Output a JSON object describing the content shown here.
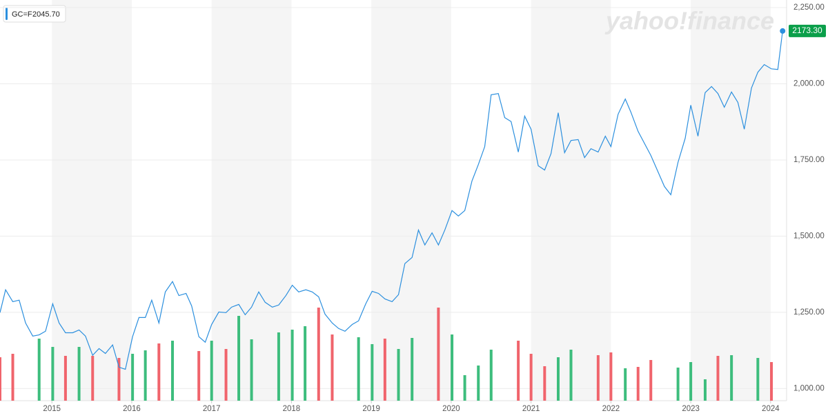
{
  "chart_data": {
    "type": "line",
    "symbol": "GC=F",
    "symbol_value": "2045.70",
    "watermark": "yahoo!finance",
    "last_label": "2173.30",
    "xlim": [
      2014.35,
      2024.2
    ],
    "xticks": [
      2015,
      2016,
      2017,
      2018,
      2019,
      2020,
      2021,
      2022,
      2023,
      2024
    ],
    "ylim": [
      960,
      2275
    ],
    "yticks": [
      {
        "value": 1000,
        "label": "1,000.00"
      },
      {
        "value": 1250,
        "label": "1,250.00"
      },
      {
        "value": 1500,
        "label": "1,500.00"
      },
      {
        "value": 1750,
        "label": "1,750.00"
      },
      {
        "value": 2000,
        "label": "2,000.00"
      },
      {
        "value": 2250,
        "label": "2,250.00"
      }
    ],
    "grid": true,
    "x": [
      2014.35,
      2014.42,
      2014.51,
      2014.59,
      2014.67,
      2014.76,
      2014.84,
      2014.92,
      2015.01,
      2015.09,
      2015.17,
      2015.26,
      2015.34,
      2015.42,
      2015.51,
      2015.59,
      2015.67,
      2015.76,
      2015.84,
      2015.92,
      2016.01,
      2016.09,
      2016.17,
      2016.25,
      2016.34,
      2016.42,
      2016.51,
      2016.59,
      2016.68,
      2016.75,
      2016.84,
      2016.92,
      2017.0,
      2017.09,
      2017.18,
      2017.25,
      2017.34,
      2017.42,
      2017.5,
      2017.59,
      2017.67,
      2017.76,
      2017.84,
      2017.93,
      2018.01,
      2018.09,
      2018.18,
      2018.26,
      2018.34,
      2018.42,
      2018.51,
      2018.59,
      2018.67,
      2018.76,
      2018.84,
      2018.93,
      2019.01,
      2019.09,
      2019.17,
      2019.26,
      2019.34,
      2019.42,
      2019.51,
      2019.59,
      2019.67,
      2019.76,
      2019.84,
      2019.92,
      2020.01,
      2020.09,
      2020.17,
      2020.26,
      2020.34,
      2020.42,
      2020.5,
      2020.59,
      2020.67,
      2020.75,
      2020.84,
      2020.92,
      2021.0,
      2021.09,
      2021.17,
      2021.25,
      2021.34,
      2021.42,
      2021.5,
      2021.59,
      2021.67,
      2021.75,
      2021.84,
      2021.93,
      2022.0,
      2022.09,
      2022.18,
      2022.25,
      2022.34,
      2022.5,
      2022.67,
      2022.75,
      2022.84,
      2022.93,
      2023.0,
      2023.09,
      2023.18,
      2023.26,
      2023.34,
      2023.42,
      2023.51,
      2023.59,
      2023.67,
      2023.76,
      2023.84,
      2023.92,
      2024.01,
      2024.09,
      2024.15
    ],
    "series": [
      {
        "name": "GC=F",
        "color": "#2b8fde",
        "values": [
          1249,
          1324,
          1285,
          1290,
          1215,
          1172,
          1176,
          1188,
          1278,
          1215,
          1183,
          1183,
          1192,
          1172,
          1109,
          1131,
          1115,
          1143,
          1070,
          1063,
          1170,
          1233,
          1233,
          1290,
          1215,
          1317,
          1351,
          1305,
          1312,
          1271,
          1170,
          1152,
          1210,
          1251,
          1249,
          1267,
          1276,
          1242,
          1267,
          1317,
          1283,
          1267,
          1274,
          1305,
          1339,
          1317,
          1324,
          1317,
          1301,
          1244,
          1215,
          1197,
          1188,
          1210,
          1222,
          1278,
          1319,
          1312,
          1294,
          1285,
          1308,
          1410,
          1430,
          1520,
          1471,
          1511,
          1471,
          1520,
          1584,
          1566,
          1584,
          1681,
          1735,
          1794,
          1964,
          1968,
          1889,
          1876,
          1776,
          1894,
          1851,
          1731,
          1717,
          1771,
          1905,
          1774,
          1814,
          1817,
          1758,
          1787,
          1776,
          1828,
          1794,
          1900,
          1950,
          1907,
          1844,
          1765,
          1663,
          1636,
          1742,
          1821,
          1930,
          1828,
          1971,
          1991,
          1968,
          1923,
          1973,
          1939,
          1851,
          1986,
          2038,
          2063,
          2049,
          2047,
          2173.3
        ]
      }
    ],
    "volume": {
      "vlim": [
        0,
        150
      ],
      "up_color": "#3dbd7d",
      "down_color": "#f0646c",
      "x": [
        2014.35,
        2014.51,
        2014.84,
        2015.01,
        2015.17,
        2015.34,
        2015.51,
        2015.84,
        2016.01,
        2016.17,
        2016.34,
        2016.51,
        2016.84,
        2017.0,
        2017.18,
        2017.34,
        2017.5,
        2017.84,
        2018.01,
        2018.17,
        2018.34,
        2018.51,
        2018.84,
        2019.01,
        2019.17,
        2019.34,
        2019.51,
        2019.84,
        2020.01,
        2020.17,
        2020.34,
        2020.5,
        2020.84,
        2021.0,
        2021.17,
        2021.34,
        2021.5,
        2021.84,
        2022.0,
        2022.18,
        2022.34,
        2022.5,
        2022.84,
        2023.0,
        2023.18,
        2023.34,
        2023.51,
        2023.84,
        2024.01
      ],
      "values": [
        63,
        68,
        90,
        78,
        65,
        78,
        65,
        62,
        68,
        73,
        83,
        87,
        72,
        87,
        75,
        123,
        89,
        99,
        103,
        108,
        135,
        96,
        92,
        82,
        90,
        75,
        91,
        135,
        96,
        37,
        51,
        74,
        87,
        68,
        50,
        63,
        74,
        66,
        70,
        47,
        49,
        59,
        48,
        56,
        31,
        65,
        66,
        62,
        56
      ],
      "up": [
        false,
        false,
        true,
        true,
        false,
        true,
        false,
        false,
        true,
        true,
        false,
        true,
        false,
        true,
        false,
        true,
        true,
        true,
        true,
        true,
        false,
        false,
        true,
        true,
        false,
        true,
        true,
        false,
        true,
        true,
        true,
        true,
        false,
        false,
        false,
        true,
        true,
        false,
        false,
        true,
        false,
        false,
        true,
        true,
        true,
        false,
        true,
        true,
        false
      ]
    }
  }
}
